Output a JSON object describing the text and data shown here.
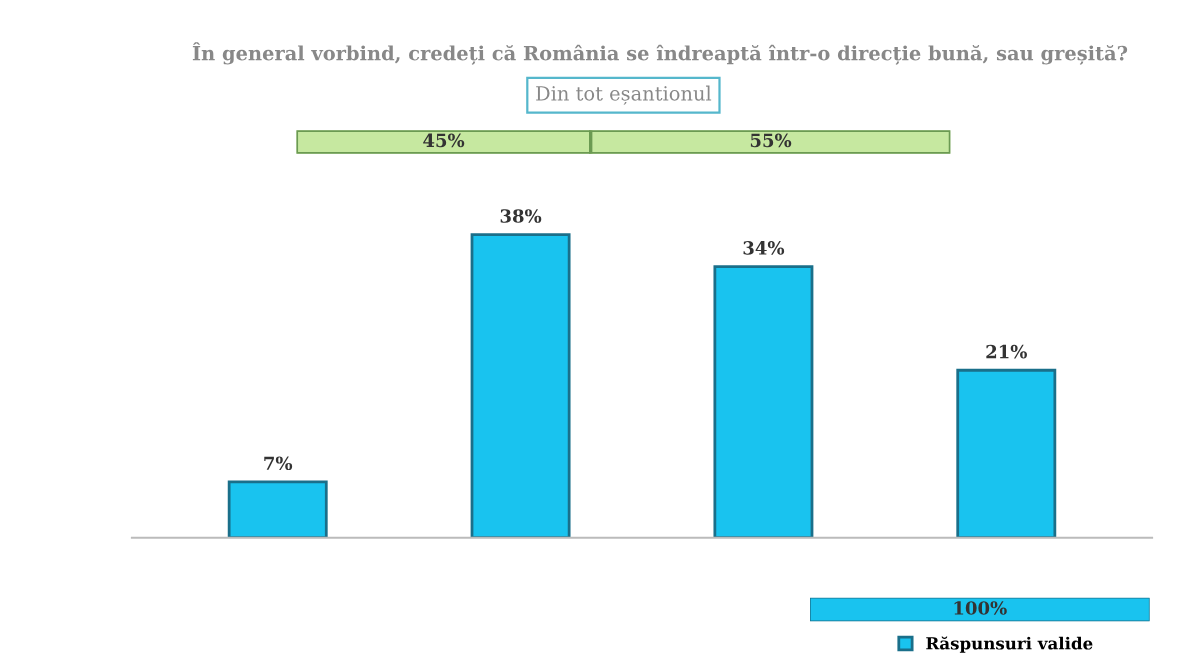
{
  "chart_data": [
    {
      "type": "bar",
      "orientation": "horizontal",
      "stacked": true,
      "title": "În general vorbind, credeți că România se îndreaptă într-o direcție bună, sau greșită?",
      "annotations": [
        "Din tot eșantionul"
      ],
      "categories": [
        null
      ],
      "series": [
        {
          "color": "#c6e8a0",
          "values": [
            45
          ],
          "value_labels": [
            "45%"
          ]
        },
        {
          "color": "#c6e8a0",
          "values": [
            55
          ],
          "value_labels": [
            "55%"
          ]
        }
      ]
    },
    {
      "type": "bar",
      "categories": [
        null,
        null,
        null,
        null
      ],
      "series": [
        {
          "name": "Răspunsuri valide",
          "color": "#19c3ef",
          "values": [
            7,
            38,
            34,
            21
          ],
          "value_labels": [
            "7%",
            "38%",
            "34%",
            "21%"
          ]
        }
      ],
      "legend": "bottom right"
    },
    {
      "type": "other",
      "categories": [
        null
      ],
      "series": [
        {
          "color": "#19c3ef",
          "values": [
            100
          ],
          "value_labels": [
            "100%"
          ]
        }
      ]
    }
  ]
}
